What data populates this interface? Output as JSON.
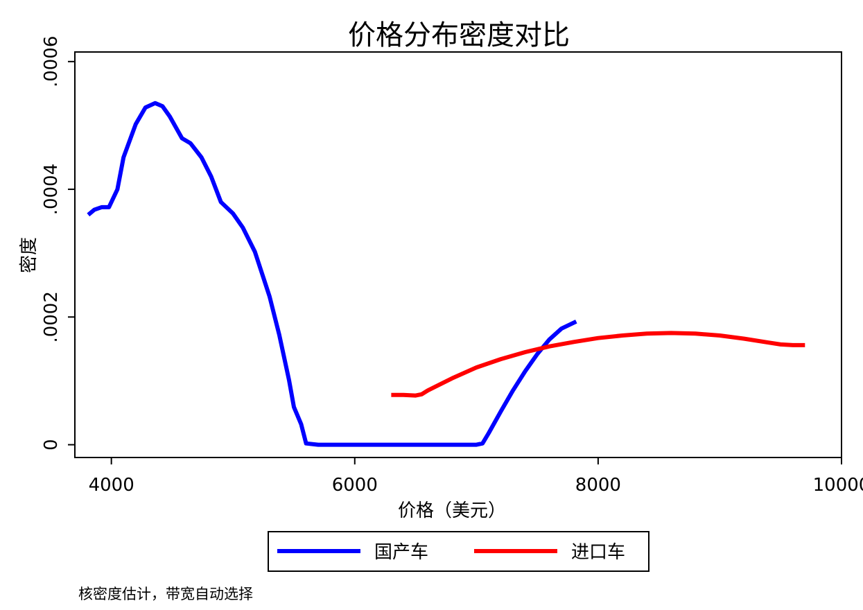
{
  "chart_data": {
    "type": "line",
    "title": "价格分布密度对比",
    "xlabel": "价格（美元）",
    "ylabel": "密度",
    "xlim": [
      3700,
      10000
    ],
    "ylim": [
      -2e-05,
      0.000615
    ],
    "xticks": [
      4000,
      6000,
      8000,
      10000
    ],
    "xtick_labels": [
      "4000",
      "6000",
      "8000",
      "10000"
    ],
    "yticks": [
      0,
      0.0002,
      0.0004,
      0.0006
    ],
    "ytick_labels": [
      "0",
      ".0002",
      ".0004",
      ".0006"
    ],
    "grid": false,
    "legend_position": "bottom",
    "series": [
      {
        "name": "国产车",
        "color": "#0000ff",
        "x": [
          3810,
          3860,
          3920,
          3980,
          4050,
          4100,
          4200,
          4280,
          4360,
          4420,
          4480,
          4580,
          4650,
          4740,
          4820,
          4900,
          5000,
          5080,
          5180,
          5300,
          5380,
          5460,
          5500,
          5560,
          5600,
          5700,
          6000,
          6500,
          7000,
          7050,
          7100,
          7200,
          7300,
          7400,
          7500,
          7600,
          7700,
          7820
        ],
        "y": [
          0.00036,
          0.000368,
          0.000372,
          0.000372,
          0.0004,
          0.00045,
          0.000502,
          0.000528,
          0.000535,
          0.00053,
          0.000514,
          0.00048,
          0.000472,
          0.00045,
          0.00042,
          0.00038,
          0.000362,
          0.00034,
          0.000302,
          0.000232,
          0.000172,
          0.000101,
          5.9e-05,
          3.2e-05,
          2e-06,
          0.0,
          0.0,
          0.0,
          0.0,
          2e-06,
          1.8e-05,
          5.2e-05,
          8.5e-05,
          0.000115,
          0.000142,
          0.000165,
          0.000182,
          0.000193
        ]
      },
      {
        "name": "进口车",
        "color": "#ff0000",
        "x": [
          6300,
          6400,
          6500,
          6550,
          6600,
          6800,
          7000,
          7200,
          7400,
          7600,
          7800,
          8000,
          8200,
          8400,
          8600,
          8800,
          9000,
          9200,
          9400,
          9500,
          9600,
          9700
        ],
        "y": [
          7.8e-05,
          7.8e-05,
          7.7e-05,
          7.9e-05,
          8.5e-05,
          0.000104,
          0.000121,
          0.000134,
          0.000145,
          0.000154,
          0.000161,
          0.000167,
          0.000171,
          0.000174,
          0.000175,
          0.000174,
          0.000171,
          0.000166,
          0.00016,
          0.000157,
          0.000156,
          0.000156
        ]
      }
    ],
    "note": "核密度估计，带宽自动选择"
  }
}
